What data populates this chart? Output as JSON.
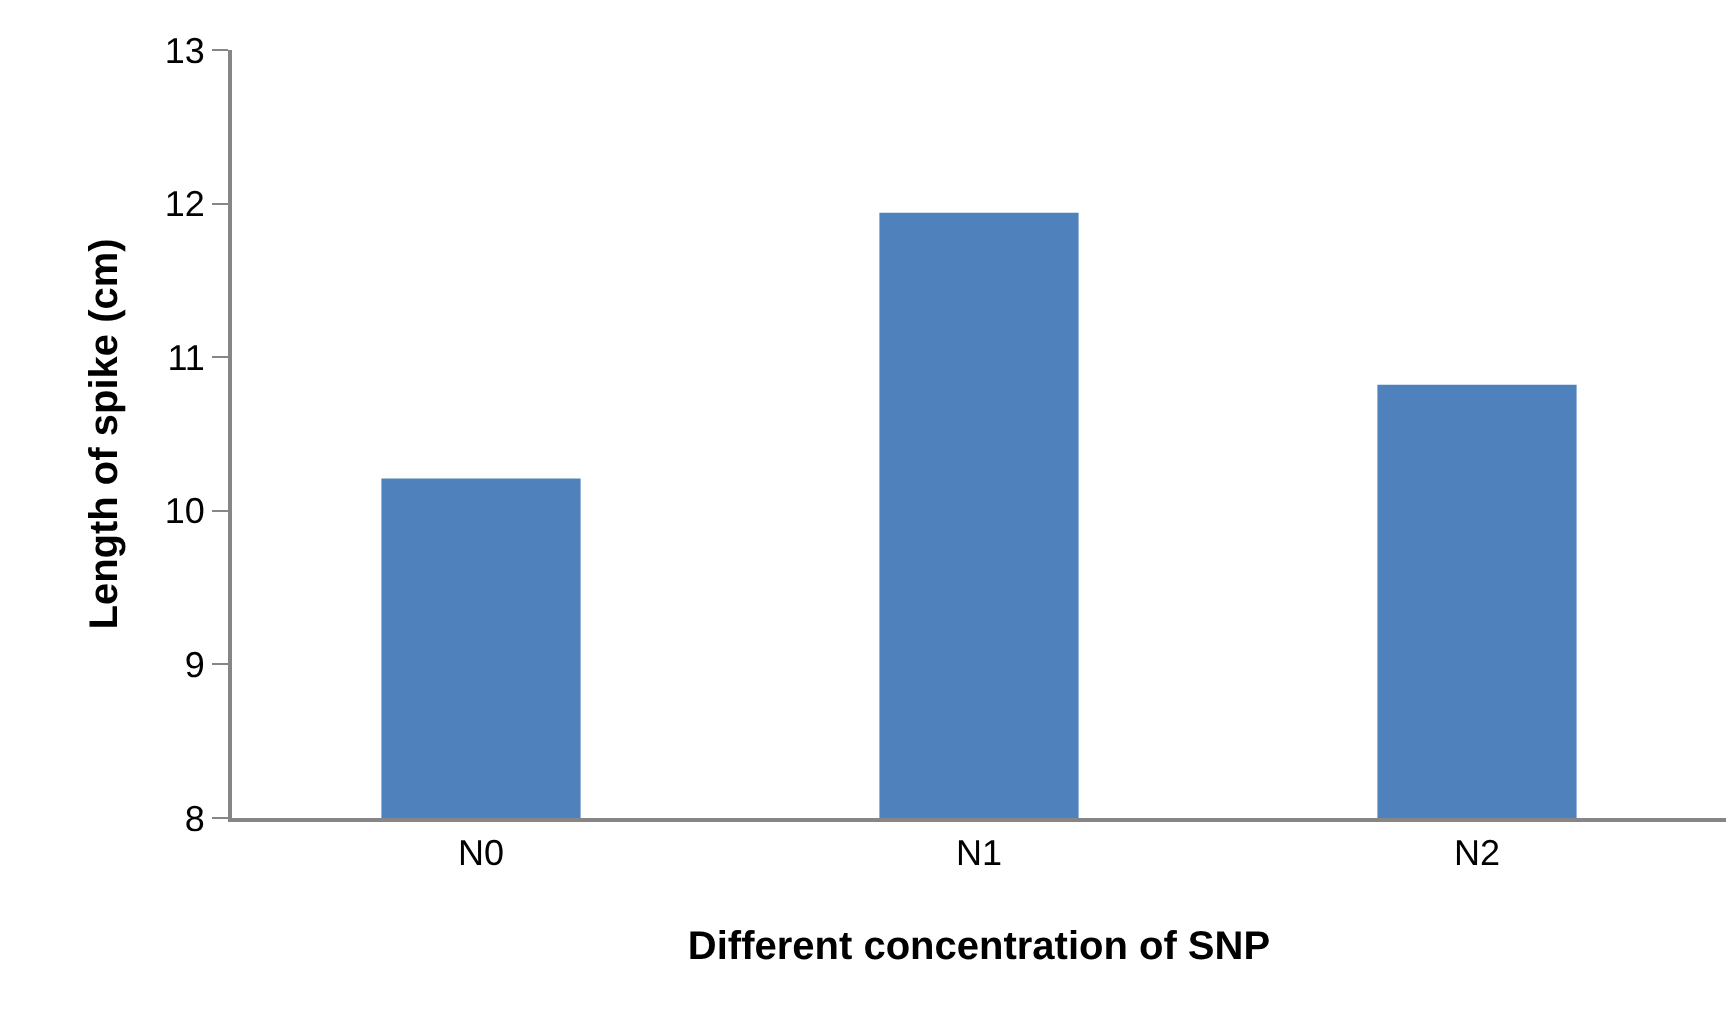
{
  "chart_data": {
    "type": "bar",
    "xlabel": "Different concentration of SNP",
    "ylabel": "Length of spike (cm)",
    "categories": [
      "N0",
      "N1",
      "N2"
    ],
    "values": [
      10.21,
      11.94,
      10.82
    ],
    "color": "#4f81bd",
    "ylim": [
      8,
      13
    ],
    "yticks": [
      8,
      9,
      10,
      11,
      12,
      13
    ]
  }
}
